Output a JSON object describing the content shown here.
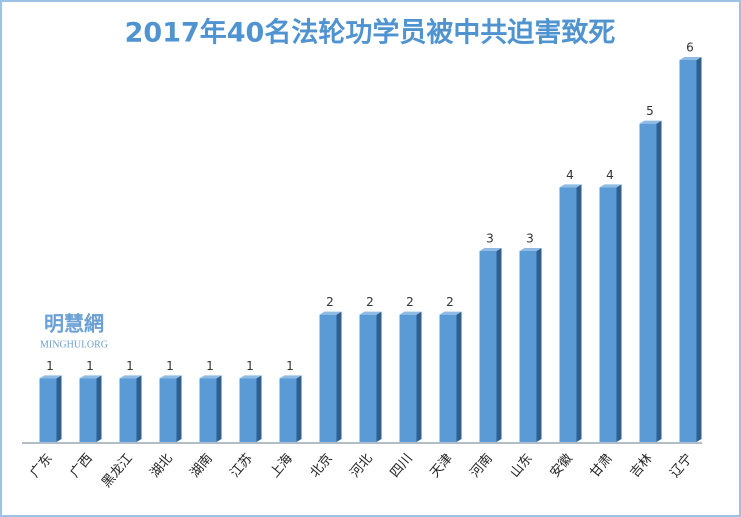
{
  "chart_data": {
    "type": "bar",
    "title": "2017年40名法轮功学员被中共迫害致死",
    "watermark": {
      "name": "明慧網",
      "site": "MINGHUI.ORG"
    },
    "categories": [
      "广东",
      "广西",
      "黑龙江",
      "湖北",
      "湖南",
      "江苏",
      "上海",
      "北京",
      "河北",
      "四川",
      "天津",
      "河南",
      "山东",
      "安徽",
      "甘肃",
      "吉林",
      "辽宁"
    ],
    "values": [
      1,
      1,
      1,
      1,
      1,
      1,
      1,
      2,
      2,
      2,
      2,
      3,
      3,
      4,
      4,
      5,
      6
    ],
    "color": "#5b9bd5"
  }
}
